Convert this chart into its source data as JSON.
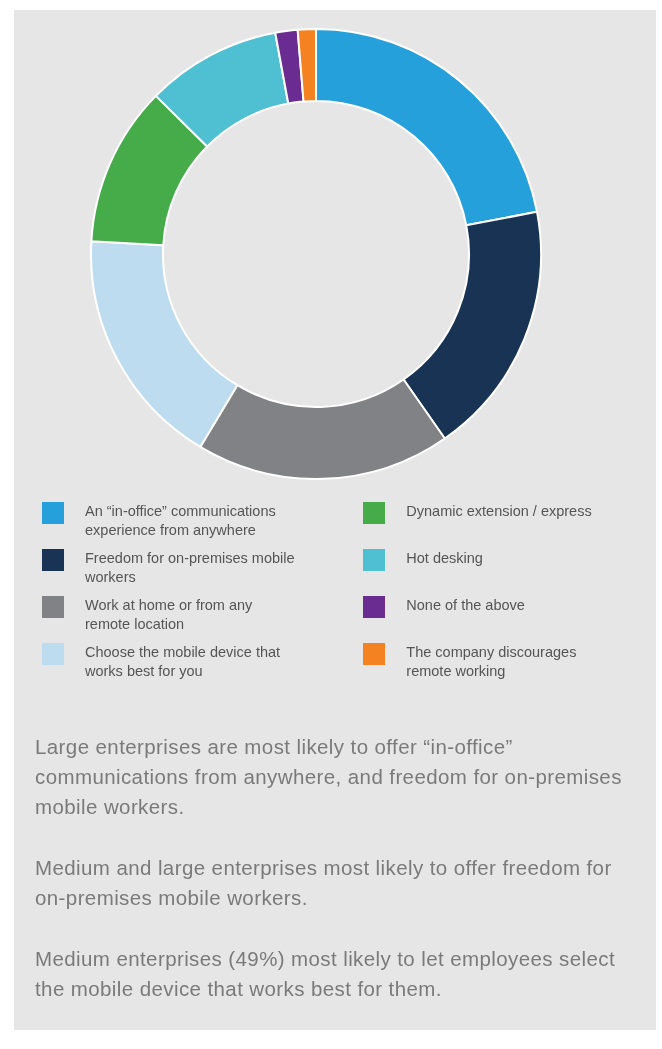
{
  "chart_data": {
    "type": "donut",
    "categories": [
      "An “in-office” communications experience from anywhere",
      "Freedom for on-premises mobile workers",
      "Work at home or from any remote location",
      "Choose the mobile device that works best for you",
      "Dynamic extension / express",
      "Hot desking",
      "None of the above",
      "The company discourages remote working"
    ],
    "values": [
      22,
      18.3,
      18.3,
      17.3,
      11.5,
      9.7,
      1.6,
      1.3
    ],
    "colors": [
      "#25a0db",
      "#183354",
      "#808285",
      "#bedcef",
      "#46ac4a",
      "#4fbfd2",
      "#6a2c91",
      "#f58220"
    ],
    "legend": "bottom",
    "annotations": [
      "Large enterprises are most likely to offer “in-office” communications from anywhere, and freedom for on-premises mobile workers.",
      "Medium and large enterprises most likely to offer freedom for on-premises mobile workers.",
      "Medium enterprises (49%) most likely to let employees select the mobile device that works best for them."
    ]
  }
}
